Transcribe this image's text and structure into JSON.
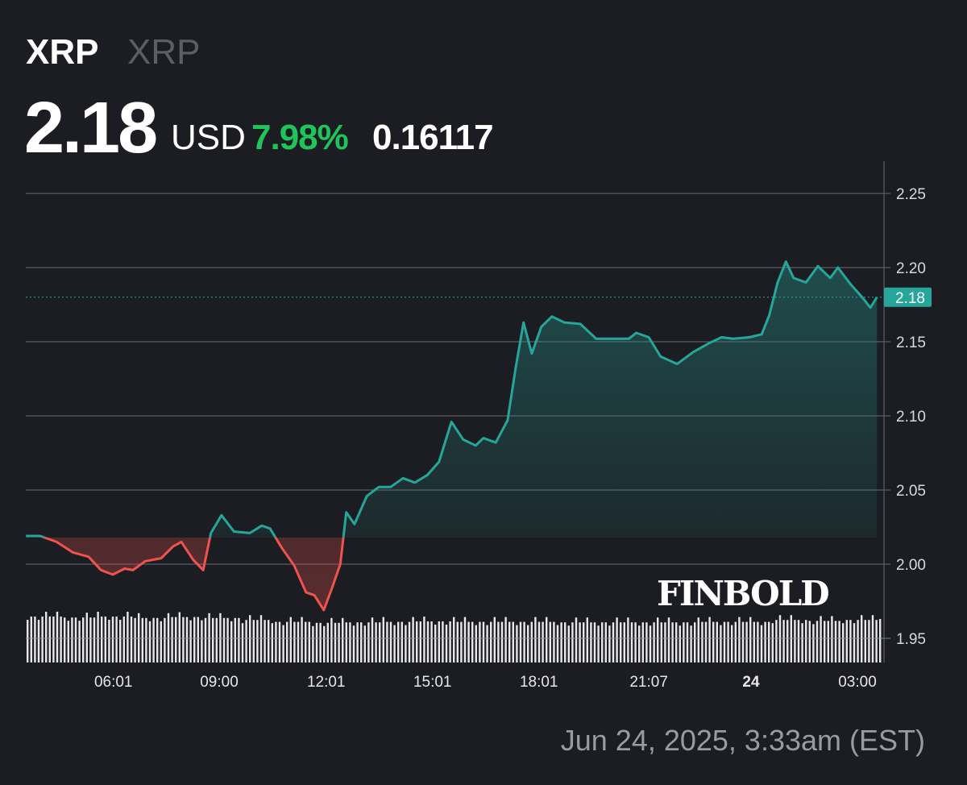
{
  "header": {
    "symbol": "XRP",
    "name": "XRP",
    "price": "2.18",
    "currency": "USD",
    "change_pct": "7.98%",
    "change_abs": "0.16117"
  },
  "footer": {
    "timestamp": "Jun 24, 2025, 3:33am (EST)"
  },
  "logo": "FINBOLD",
  "colors": {
    "up": "#26a69a",
    "down": "#ef5350",
    "change_pct": "#1ec55b",
    "background": "#1c1d22",
    "grid": "#6a6b70"
  },
  "chart_data": {
    "type": "line",
    "title": "",
    "xlabel": "",
    "ylabel": "",
    "ylim": [
      1.935,
      2.27
    ],
    "y_axis_position": "right",
    "y_ticks": [
      "1.95",
      "2.00",
      "2.05",
      "2.10",
      "2.15",
      "2.20",
      "2.25"
    ],
    "x_ticks": [
      {
        "label": "06:01",
        "t": "06-23 06:01"
      },
      {
        "label": "09:00",
        "t": "06-23 09:00"
      },
      {
        "label": "12:01",
        "t": "06-23 12:01"
      },
      {
        "label": "15:01",
        "t": "06-23 15:01"
      },
      {
        "label": "18:01",
        "t": "06-23 18:01"
      },
      {
        "label": "21:07",
        "t": "06-23 21:07"
      },
      {
        "label": "24",
        "t": "06-24 00:00",
        "bold": true
      },
      {
        "label": "03:00",
        "t": "06-24 03:00"
      }
    ],
    "grid": true,
    "baseline": 2.018,
    "last_price_label": "2.18",
    "last_price": 2.18,
    "series": [
      {
        "points": [
          [
            "06-23 03:33",
            2.019
          ],
          [
            "06-23 03:57",
            2.019
          ],
          [
            "06-23 04:25",
            2.015
          ],
          [
            "06-23 04:52",
            2.008
          ],
          [
            "06-23 05:19",
            2.005
          ],
          [
            "06-23 05:40",
            1.996
          ],
          [
            "06-23 06:00",
            1.993
          ],
          [
            "06-23 06:20",
            1.997
          ],
          [
            "06-23 06:34",
            1.996
          ],
          [
            "06-23 06:55",
            2.002
          ],
          [
            "06-23 07:22",
            2.004
          ],
          [
            "06-23 07:42",
            2.012
          ],
          [
            "06-23 07:56",
            2.015
          ],
          [
            "06-23 08:16",
            2.003
          ],
          [
            "06-23 08:33",
            1.996
          ],
          [
            "06-23 08:46",
            2.021
          ],
          [
            "06-23 09:04",
            2.033
          ],
          [
            "06-23 09:25",
            2.022
          ],
          [
            "06-23 09:52",
            2.021
          ],
          [
            "06-23 10:12",
            2.026
          ],
          [
            "06-23 10:26",
            2.024
          ],
          [
            "06-23 10:46",
            2.011
          ],
          [
            "06-23 11:07",
            1.999
          ],
          [
            "06-23 11:27",
            1.981
          ],
          [
            "06-23 11:41",
            1.979
          ],
          [
            "06-23 11:57",
            1.969
          ],
          [
            "06-23 12:11",
            1.984
          ],
          [
            "06-23 12:25",
            2.0
          ],
          [
            "06-23 12:35",
            2.035
          ],
          [
            "06-23 12:49",
            2.027
          ],
          [
            "06-23 13:10",
            2.046
          ],
          [
            "06-23 13:30",
            2.052
          ],
          [
            "06-23 13:50",
            2.052
          ],
          [
            "06-23 14:11",
            2.058
          ],
          [
            "06-23 14:31",
            2.055
          ],
          [
            "06-23 14:52",
            2.06
          ],
          [
            "06-23 15:12",
            2.069
          ],
          [
            "06-23 15:33",
            2.096
          ],
          [
            "06-23 15:53",
            2.084
          ],
          [
            "06-23 16:14",
            2.08
          ],
          [
            "06-23 16:27",
            2.085
          ],
          [
            "06-23 16:48",
            2.082
          ],
          [
            "06-23 17:08",
            2.097
          ],
          [
            "06-23 17:22",
            2.133
          ],
          [
            "06-23 17:35",
            2.163
          ],
          [
            "06-23 17:49",
            2.142
          ],
          [
            "06-23 18:05",
            2.16
          ],
          [
            "06-23 18:23",
            2.167
          ],
          [
            "06-23 18:44",
            2.163
          ],
          [
            "06-23 19:11",
            2.162
          ],
          [
            "06-23 19:38",
            2.152
          ],
          [
            "06-23 20:05",
            2.152
          ],
          [
            "06-23 20:33",
            2.152
          ],
          [
            "06-23 20:46",
            2.156
          ],
          [
            "06-23 21:07",
            2.153
          ],
          [
            "06-23 21:27",
            2.14
          ],
          [
            "06-23 21:55",
            2.135
          ],
          [
            "06-23 22:22",
            2.143
          ],
          [
            "06-23 22:49",
            2.149
          ],
          [
            "06-23 23:10",
            2.153
          ],
          [
            "06-23 23:30",
            2.152
          ],
          [
            "06-23 23:57",
            2.153
          ],
          [
            "06-24 00:18",
            2.155
          ],
          [
            "06-24 00:31",
            2.168
          ],
          [
            "06-24 00:45",
            2.19
          ],
          [
            "06-24 00:59",
            2.204
          ],
          [
            "06-24 01:12",
            2.193
          ],
          [
            "06-24 01:33",
            2.19
          ],
          [
            "06-24 01:53",
            2.201
          ],
          [
            "06-24 02:14",
            2.193
          ],
          [
            "06-24 02:27",
            2.2
          ],
          [
            "06-24 02:48",
            2.189
          ],
          [
            "06-24 03:08",
            2.18
          ],
          [
            "06-24 03:22",
            2.173
          ],
          [
            "06-24 03:33",
            2.18
          ]
        ]
      }
    ],
    "volume_relative_hourly": [
      0.95,
      0.93,
      0.95,
      0.92,
      0.94,
      0.92,
      0.88,
      0.84,
      0.82,
      0.83,
      0.84,
      0.85,
      0.84,
      0.84,
      0.84,
      0.83,
      0.83,
      0.83,
      0.83,
      0.84,
      0.84,
      0.88,
      0.86,
      0.88,
      0.9
    ]
  }
}
